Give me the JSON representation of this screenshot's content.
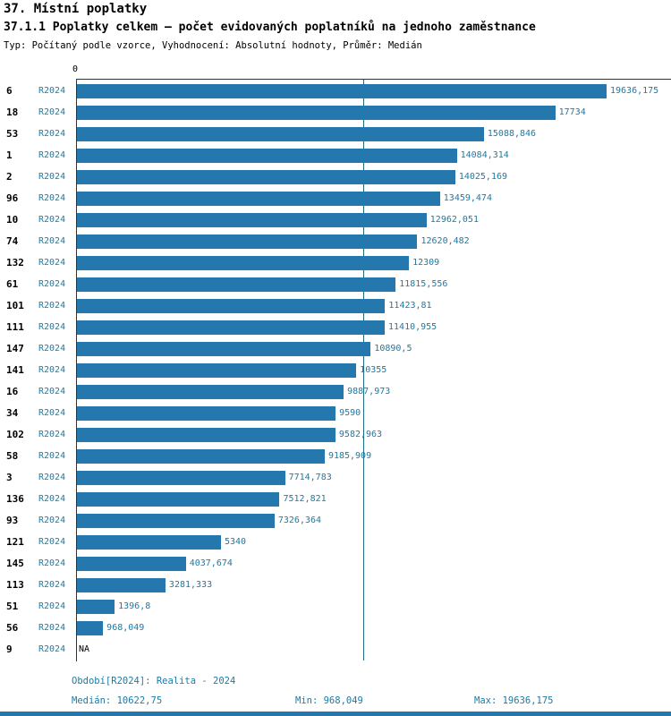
{
  "header": {
    "title": "37. Místní poplatky",
    "subtitle": "37.1.1 Poplatky celkem – počet evidovaných poplatníků na jednoho zaměstnance",
    "meta": "Typ: Počítaný podle vzorce, Vyhodnocení: Absolutní hodnoty, Průměr: Medián"
  },
  "chart_data": {
    "type": "bar",
    "orientation": "horizontal",
    "x_origin_label": "0",
    "period": "R2024",
    "xlim": [
      0,
      19636.175
    ],
    "median": 10622.75,
    "min": 968.049,
    "max": 19636.175,
    "bar_color": "#2478ae",
    "median_line_color": "#1b6e86",
    "label_color": "#1b7ba6",
    "categories": [
      "6",
      "18",
      "53",
      "1",
      "2",
      "96",
      "10",
      "74",
      "132",
      "61",
      "101",
      "111",
      "147",
      "141",
      "16",
      "34",
      "102",
      "58",
      "3",
      "136",
      "93",
      "121",
      "145",
      "113",
      "51",
      "56",
      "9"
    ],
    "values": [
      19636.175,
      17734,
      15088.846,
      14084.314,
      14025.169,
      13459.474,
      12962.051,
      12620.482,
      12309,
      11815.556,
      11423.81,
      11410.955,
      10890.5,
      10355,
      9887.973,
      9590,
      9582.963,
      9185.909,
      7714.783,
      7512.821,
      7326.364,
      5340,
      4037.674,
      3281.333,
      1396.8,
      968.049,
      null
    ],
    "value_labels": [
      "19636,175",
      "17734",
      "15088,846",
      "14084,314",
      "14025,169",
      "13459,474",
      "12962,051",
      "12620,482",
      "12309",
      "11815,556",
      "11423,81",
      "11410,955",
      "10890,5",
      "10355",
      "9887,973",
      "9590",
      "9582,963",
      "9185,909",
      "7714,783",
      "7512,821",
      "7326,364",
      "5340",
      "4037,674",
      "3281,333",
      "1396,8",
      "968,049",
      "NA"
    ]
  },
  "footer": {
    "period_line": "Období[R2024]: Realita - 2024",
    "median_label": "Medián: 10622,75",
    "min_label": "Min: 968,049",
    "max_label": "Max: 19636,175"
  }
}
